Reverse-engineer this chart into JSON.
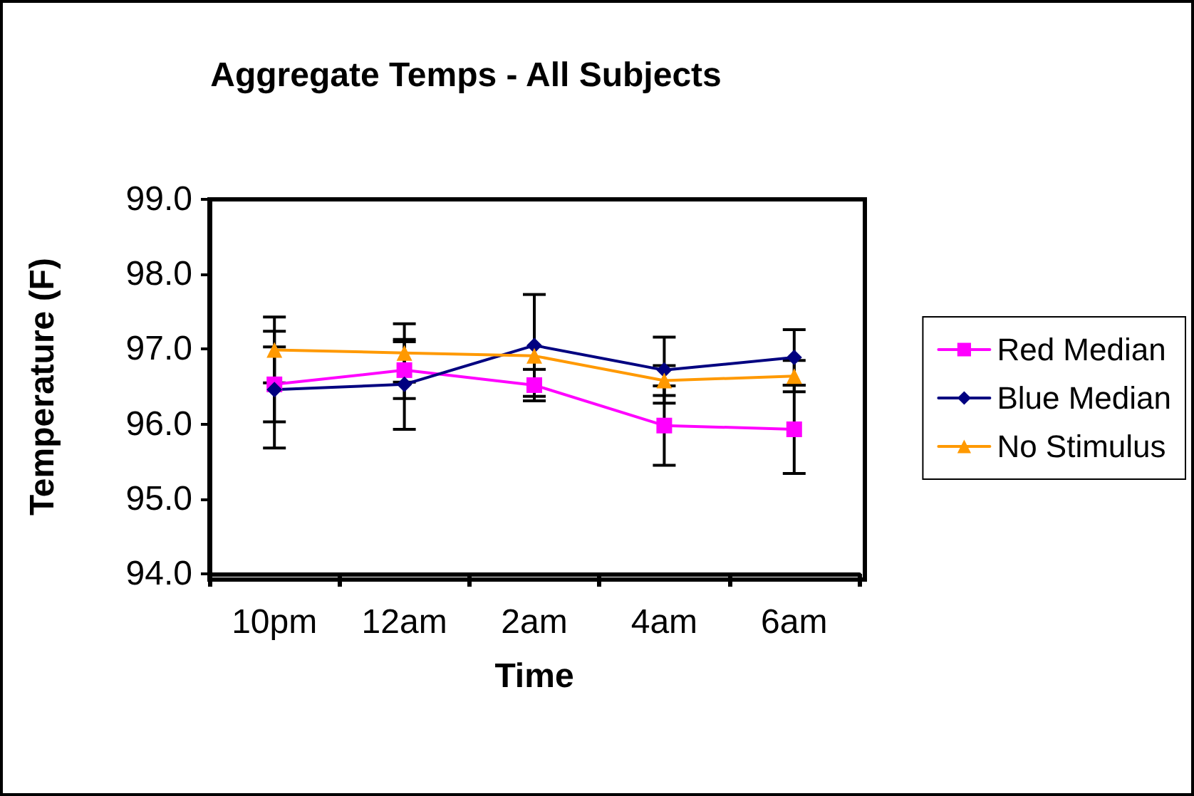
{
  "chart_data": {
    "type": "line",
    "title": "Aggregate Temps - All Subjects",
    "xlabel": "Time",
    "ylabel": "Temperature (F)",
    "categories": [
      "10pm",
      "12am",
      "2am",
      "4am",
      "6am"
    ],
    "series": [
      {
        "name": "Red Median",
        "color": "#ff00ff",
        "marker": "square",
        "values": [
          96.53,
          96.72,
          96.52,
          95.98,
          95.93
        ],
        "errors": [
          0.5,
          0.38,
          0.21,
          0.53,
          0.59
        ]
      },
      {
        "name": "Blue Median",
        "color": "#000080",
        "marker": "diamond",
        "values": [
          96.46,
          96.53,
          97.05,
          96.72,
          96.89
        ],
        "errors": [
          0.78,
          0.6,
          0.68,
          0.44,
          0.37
        ]
      },
      {
        "name": "No Stimulus",
        "color": "#ff9900",
        "marker": "triangle",
        "values": [
          96.99,
          96.95,
          96.91,
          96.58,
          96.64
        ],
        "errors": [
          0.44,
          0.39,
          null,
          0.2,
          0.21
        ]
      }
    ],
    "ylim": [
      94,
      99
    ],
    "yticks": [
      {
        "value": 94,
        "label": "94.0"
      },
      {
        "value": 95,
        "label": "95.0"
      },
      {
        "value": 96,
        "label": "96.0"
      },
      {
        "value": 97,
        "label": "97.0"
      },
      {
        "value": 98,
        "label": "98.0"
      },
      {
        "value": 99,
        "label": "99.0"
      }
    ],
    "grid": false,
    "legend": "right",
    "line_style": "solid"
  }
}
